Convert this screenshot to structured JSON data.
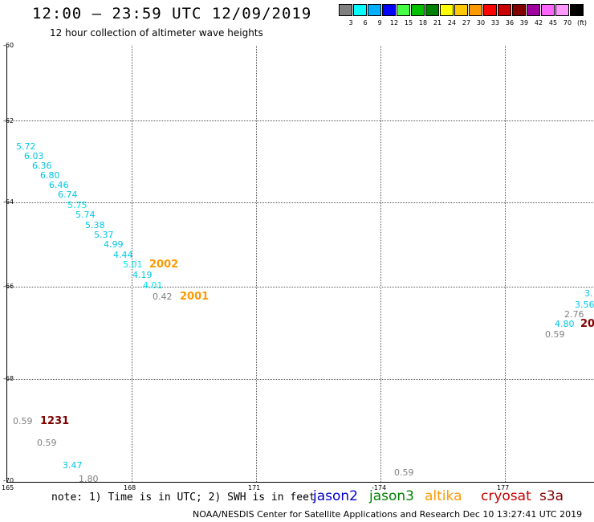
{
  "title": "12:00 – 23:59 UTC 12/09/2019",
  "subtitle": "12 hour collection of altimeter wave heights",
  "legend": {
    "colors": [
      "#808080",
      "#00ffff",
      "#00b0ff",
      "#0000ff",
      "#44ff44",
      "#00c000",
      "#008000",
      "#ffff00",
      "#ffc800",
      "#ff9900",
      "#ff0000",
      "#c80000",
      "#800000",
      "#a000a0",
      "#ff66ff",
      "#ff99ff",
      "#000000"
    ],
    "labels": [
      "3",
      "6",
      "9",
      "12",
      "15",
      "18",
      "21",
      "24",
      "27",
      "30",
      "33",
      "36",
      "39",
      "42",
      "45",
      "70",
      "(ft)"
    ]
  },
  "axes": {
    "y_labels": [
      "-60",
      "-62",
      "-64",
      "-66",
      "-68",
      "-70"
    ],
    "x_labels": [
      "165",
      "168",
      "171",
      "-174",
      "177"
    ]
  },
  "observations": [
    {
      "text": "5.72",
      "color": "#00c8e6"
    },
    {
      "text": "6.03",
      "color": "#00c8e6"
    },
    {
      "text": "6.36",
      "color": "#00c8e6"
    },
    {
      "text": "6.80",
      "color": "#00c8e6"
    },
    {
      "text": "6.46",
      "color": "#00c8e6"
    },
    {
      "text": "6.74",
      "color": "#00c8e6"
    },
    {
      "text": "5.75",
      "color": "#00e6f0"
    },
    {
      "text": "5.74",
      "color": "#00c8e6"
    },
    {
      "text": "5.38",
      "color": "#00c8e6"
    },
    {
      "text": "5.37",
      "color": "#00c8e6"
    },
    {
      "text": "4.99",
      "color": "#00c8e6"
    },
    {
      "text": "4.44",
      "color": "#00c8e6"
    },
    {
      "text": "5.01",
      "color": "#00e6f0"
    },
    {
      "text": "4.19",
      "color": "#00c8e6"
    },
    {
      "text": "4.01",
      "color": "#00e6f0"
    },
    {
      "text": "0.42",
      "color": "#808080"
    },
    {
      "text": "3.",
      "color": "#00c8e6"
    },
    {
      "text": "3.56",
      "color": "#00c8e6"
    },
    {
      "text": "2.76",
      "color": "#808080"
    },
    {
      "text": "4.80",
      "color": "#00c8e6"
    },
    {
      "text": "0.59",
      "color": "#808080"
    },
    {
      "text": "0.59",
      "color": "#808080"
    },
    {
      "text": "0.59",
      "color": "#808080"
    },
    {
      "text": "3.47",
      "color": "#00c8e6"
    },
    {
      "text": "1.80",
      "color": "#808080"
    },
    {
      "text": "0.59",
      "color": "#808080"
    }
  ],
  "time_labels": [
    {
      "text": "2002",
      "color": "#ff9900"
    },
    {
      "text": "2001",
      "color": "#ff9900"
    },
    {
      "text": "20",
      "color": "#800000"
    },
    {
      "text": "1231",
      "color": "#800000"
    }
  ],
  "note": "note: 1) Time is in UTC; 2) SWH is in feet",
  "satellites": [
    {
      "name": "jason2",
      "color": "#0000cc"
    },
    {
      "name": "jason3",
      "color": "#008000"
    },
    {
      "name": "altika",
      "color": "#ff9900"
    },
    {
      "name": "cryosat",
      "color": "#cc0000"
    },
    {
      "name": "s3a",
      "color": "#800000"
    }
  ],
  "footer": "NOAA/NESDIS Center for Satellite Applications and Research    Dec 10 13:27:41 UTC 2019"
}
